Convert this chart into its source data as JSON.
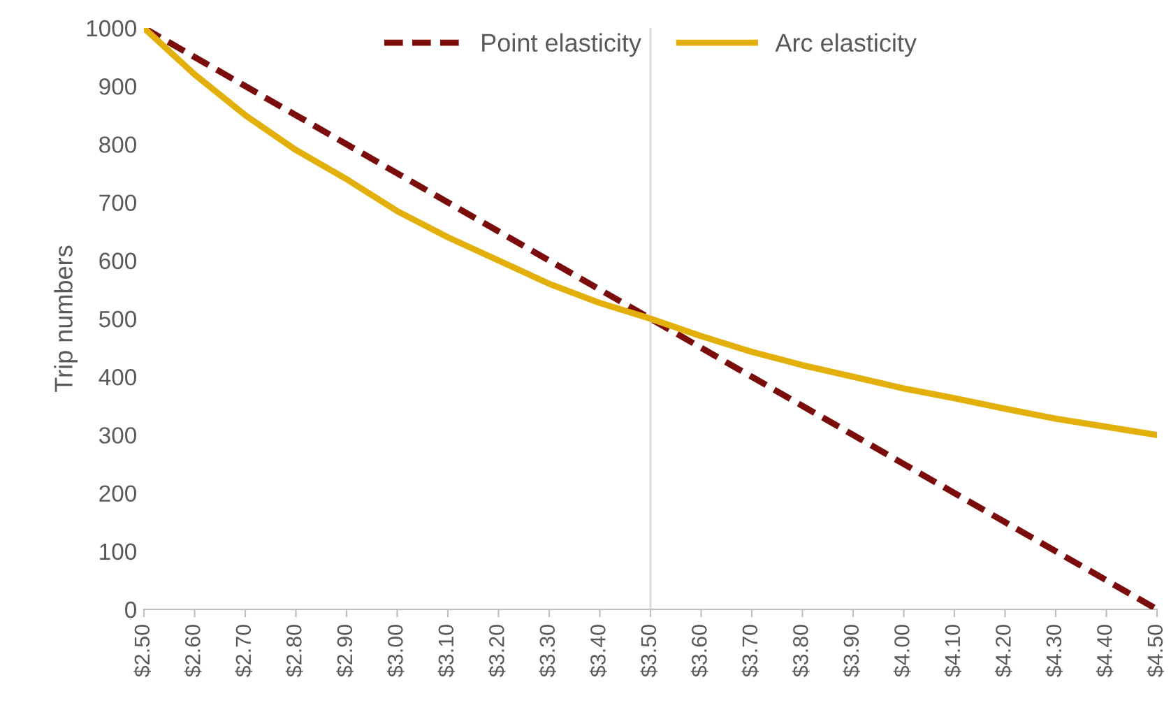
{
  "chart_data": {
    "type": "line",
    "ylabel": "Trip numbers",
    "categories": [
      "$2.50",
      "$2.60",
      "$2.70",
      "$2.80",
      "$2.90",
      "$3.00",
      "$3.10",
      "$3.20",
      "$3.30",
      "$3.40",
      "$3.50",
      "$3.60",
      "$3.70",
      "$3.80",
      "$3.90",
      "$4.00",
      "$4.10",
      "$4.20",
      "$4.30",
      "$4.40",
      "$4.50"
    ],
    "series": [
      {
        "name": "Point elasticity",
        "color": "#7b0c0c",
        "line_style": "dashed",
        "values": [
          1000,
          950,
          900,
          850,
          800,
          750,
          700,
          650,
          600,
          550,
          500,
          450,
          400,
          350,
          300,
          250,
          200,
          150,
          100,
          50,
          0
        ]
      },
      {
        "name": "Arc elasticity",
        "color": "#e3b00b",
        "line_style": "solid",
        "values": [
          1000,
          920,
          850,
          790,
          740,
          685,
          640,
          600,
          560,
          527,
          500,
          470,
          443,
          420,
          400,
          380,
          363,
          345,
          328,
          314,
          300
        ]
      }
    ],
    "ylim": [
      0,
      1000
    ],
    "yticks": [
      0,
      100,
      200,
      300,
      400,
      500,
      600,
      700,
      800,
      900,
      1000
    ],
    "ref_lines": [
      {
        "axis": "x",
        "value": "$3.50",
        "color": "#d9d9d9"
      }
    ],
    "legend": "top",
    "grid": false
  }
}
